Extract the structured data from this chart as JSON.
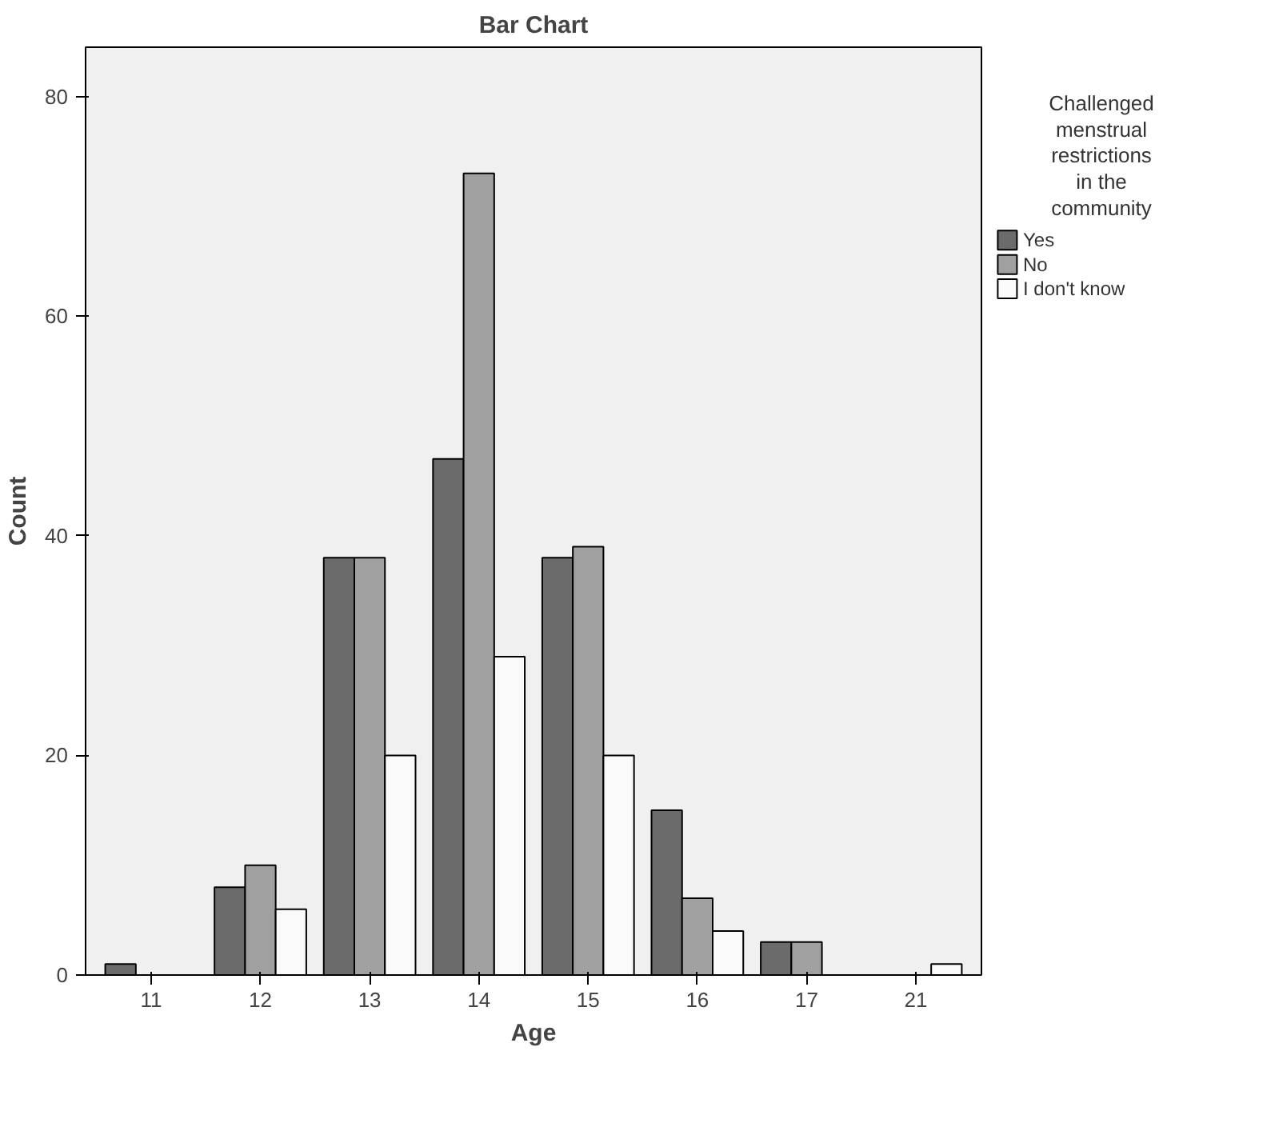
{
  "chart_data": {
    "type": "bar",
    "title": "Bar Chart",
    "xlabel": "Age",
    "ylabel": "Count",
    "legend_title": "Challenged menstrual restrictions in the community",
    "categories": [
      "11",
      "12",
      "13",
      "14",
      "15",
      "16",
      "17",
      "21"
    ],
    "series": [
      {
        "name": "Yes",
        "color": "#6b6b6b",
        "values": [
          1,
          8,
          38,
          47,
          38,
          15,
          3,
          0
        ]
      },
      {
        "name": "No",
        "color": "#a0a0a0",
        "values": [
          0,
          10,
          38,
          73,
          39,
          7,
          3,
          0
        ]
      },
      {
        "name": "I don't know",
        "color": "#fafafa",
        "values": [
          0,
          6,
          20,
          29,
          20,
          4,
          0,
          1
        ]
      }
    ],
    "ylim": [
      0,
      84.5
    ],
    "yticks": [
      0,
      20,
      40,
      60,
      80
    ],
    "grid": false,
    "legend": "right"
  }
}
